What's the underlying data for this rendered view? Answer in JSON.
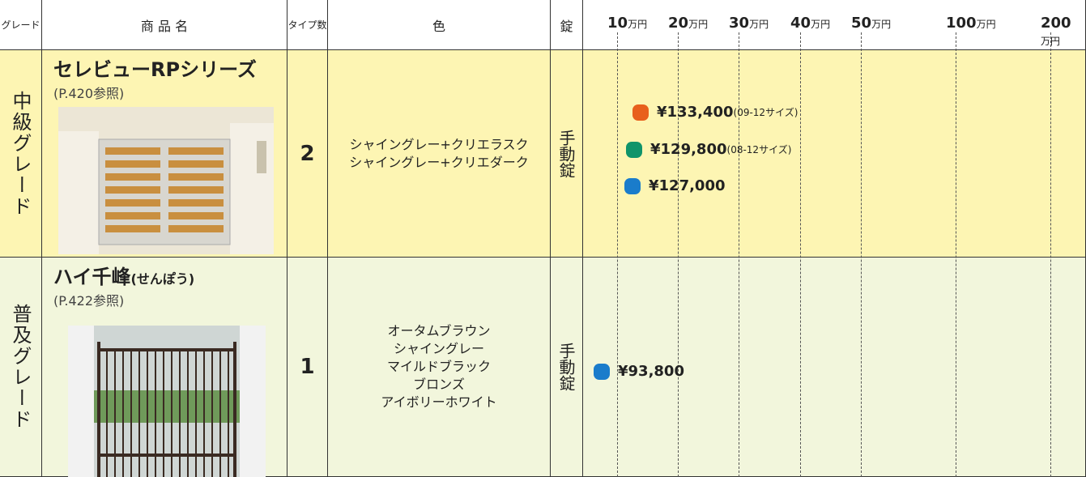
{
  "header": {
    "grade": "グレード",
    "name": "商 品 名",
    "types": "タイプ数",
    "color": "色",
    "lock": "錠"
  },
  "scale": {
    "unit": "万円",
    "ticks": [
      "10",
      "20",
      "30",
      "40",
      "50",
      "100",
      "200"
    ]
  },
  "rows": [
    {
      "grade": "中級グレード",
      "name": "セレビューRPシリーズ",
      "ref": "(P.420参照)",
      "types": "2",
      "colors": [
        "シャイングレー+クリエラスク",
        "シャイングレー+クリエダーク"
      ],
      "lock": "手動錠",
      "prices": [
        {
          "price": "¥133,400",
          "note": "(09-12サイズ)",
          "color": "#e8601c"
        },
        {
          "price": "¥129,800",
          "note": "(08-12サイズ)",
          "color": "#10946a"
        },
        {
          "price": "¥127,000",
          "color": "#1a7ccb"
        }
      ]
    },
    {
      "grade": "普及グレード",
      "name": "ハイ千峰",
      "name_note": "(せんぽう)",
      "ref": "(P.422参照)",
      "types": "1",
      "colors": [
        "オータムブラウン",
        "シャイングレー",
        "マイルドブラック",
        "ブロンズ",
        "アイボリーホワイト"
      ],
      "lock": "手動錠",
      "prices": [
        {
          "price": "¥93,800",
          "color": "#1a7ccb"
        }
      ]
    }
  ]
}
